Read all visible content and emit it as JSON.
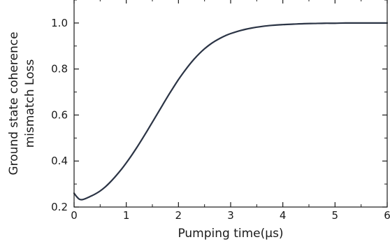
{
  "chart_data": {
    "type": "line",
    "title": "",
    "xlabel": "Pumping time(μs)",
    "ylabel_lines": [
      "Ground state coherence",
      "mismatch Loss"
    ],
    "xlim": [
      0,
      6
    ],
    "ylim": [
      0.2,
      1.1
    ],
    "x_ticks": [
      0,
      1,
      2,
      3,
      4,
      5,
      6
    ],
    "y_ticks": [
      0.2,
      0.4,
      0.6,
      0.8,
      1.0
    ],
    "x_tick_labels": [
      "0",
      "1",
      "2",
      "3",
      "4",
      "5",
      "6"
    ],
    "y_tick_labels": [
      "0.2",
      "0.4",
      "0.6",
      "0.8",
      "1.0"
    ],
    "grid": false,
    "line_color": "#2b3445",
    "series": [
      {
        "x": [
          0,
          0.05,
          0.1,
          0.15,
          0.2,
          0.3,
          0.4,
          0.5,
          0.6,
          0.7,
          0.8,
          0.9,
          1.0,
          1.1,
          1.2,
          1.3,
          1.4,
          1.5,
          1.6,
          1.7,
          1.8,
          1.9,
          2.0,
          2.1,
          2.2,
          2.3,
          2.4,
          2.5,
          2.6,
          2.7,
          2.8,
          2.9,
          3.0,
          3.2,
          3.4,
          3.6,
          3.8,
          4.0,
          4.2,
          4.4,
          4.6,
          4.8,
          5.0,
          5.2,
          5.5,
          6.0
        ],
        "y": [
          0.26,
          0.245,
          0.234,
          0.232,
          0.235,
          0.245,
          0.256,
          0.27,
          0.288,
          0.31,
          0.335,
          0.362,
          0.392,
          0.424,
          0.458,
          0.494,
          0.531,
          0.569,
          0.607,
          0.645,
          0.683,
          0.719,
          0.754,
          0.786,
          0.816,
          0.843,
          0.867,
          0.888,
          0.906,
          0.921,
          0.934,
          0.945,
          0.954,
          0.968,
          0.978,
          0.985,
          0.99,
          0.993,
          0.995,
          0.997,
          0.998,
          0.999,
          0.999,
          1.0,
          1.0,
          1.0
        ]
      }
    ]
  }
}
